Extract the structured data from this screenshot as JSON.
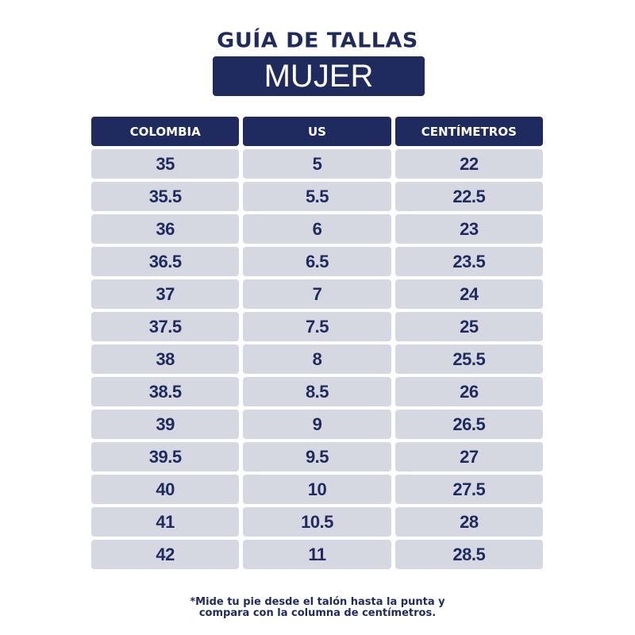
{
  "title": "GUÍA DE TALLAS",
  "subtitle": "MUJER",
  "colors": {
    "navy": "#1f2b5e",
    "row_bg": "#d5d8e1"
  },
  "table": {
    "headers": [
      "COLOMBIA",
      "US",
      "CENTÍMETROS"
    ],
    "rows": [
      [
        "35",
        "5",
        "22"
      ],
      [
        "35.5",
        "5.5",
        "22.5"
      ],
      [
        "36",
        "6",
        "23"
      ],
      [
        "36.5",
        "6.5",
        "23.5"
      ],
      [
        "37",
        "7",
        "24"
      ],
      [
        "37.5",
        "7.5",
        "25"
      ],
      [
        "38",
        "8",
        "25.5"
      ],
      [
        "38.5",
        "8.5",
        "26"
      ],
      [
        "39",
        "9",
        "26.5"
      ],
      [
        "39.5",
        "9.5",
        "27"
      ],
      [
        "40",
        "10",
        "27.5"
      ],
      [
        "41",
        "10.5",
        "28"
      ],
      [
        "42",
        "11",
        "28.5"
      ]
    ]
  },
  "note": {
    "line1": "*Mide tu pie desde el talón hasta la punta y",
    "line2": "compara con la columna de centímetros."
  }
}
